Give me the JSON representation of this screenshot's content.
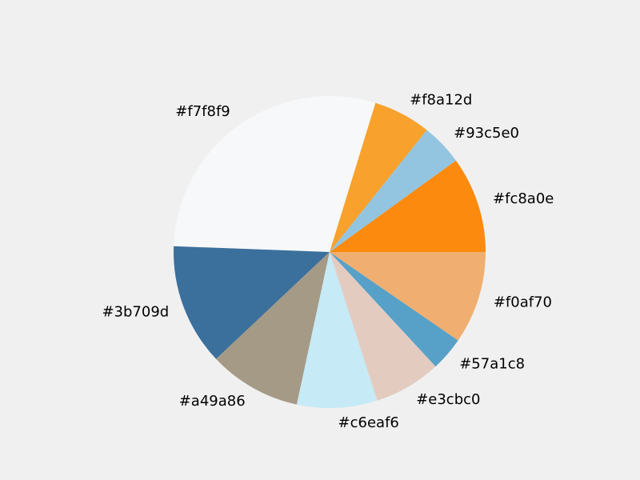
{
  "chart_data": {
    "type": "pie",
    "title": "",
    "direction": "counterclockwise",
    "start_angle_deg": 0,
    "slices": [
      {
        "label": "#fc8a0e",
        "value": 10.2,
        "color": "#fc8a0e"
      },
      {
        "label": "#93c5e0",
        "value": 4.4,
        "color": "#93c5e0"
      },
      {
        "label": "#f8a12d",
        "value": 6.1,
        "color": "#f8a12d"
      },
      {
        "label": "#f7f8f9",
        "value": 29.8,
        "color": "#f7f8f9"
      },
      {
        "label": "#3b709d",
        "value": 12.9,
        "color": "#3b709d"
      },
      {
        "label": "#a49a86",
        "value": 9.8,
        "color": "#a49a86"
      },
      {
        "label": "#c6eaf6",
        "value": 8.5,
        "color": "#c6eaf6"
      },
      {
        "label": "#e3cbc0",
        "value": 7.1,
        "color": "#e3cbc0"
      },
      {
        "label": "#57a1c8",
        "value": 3.6,
        "color": "#57a1c8"
      },
      {
        "label": "#f0af70",
        "value": 9.8,
        "color": "#f0af70"
      }
    ]
  }
}
